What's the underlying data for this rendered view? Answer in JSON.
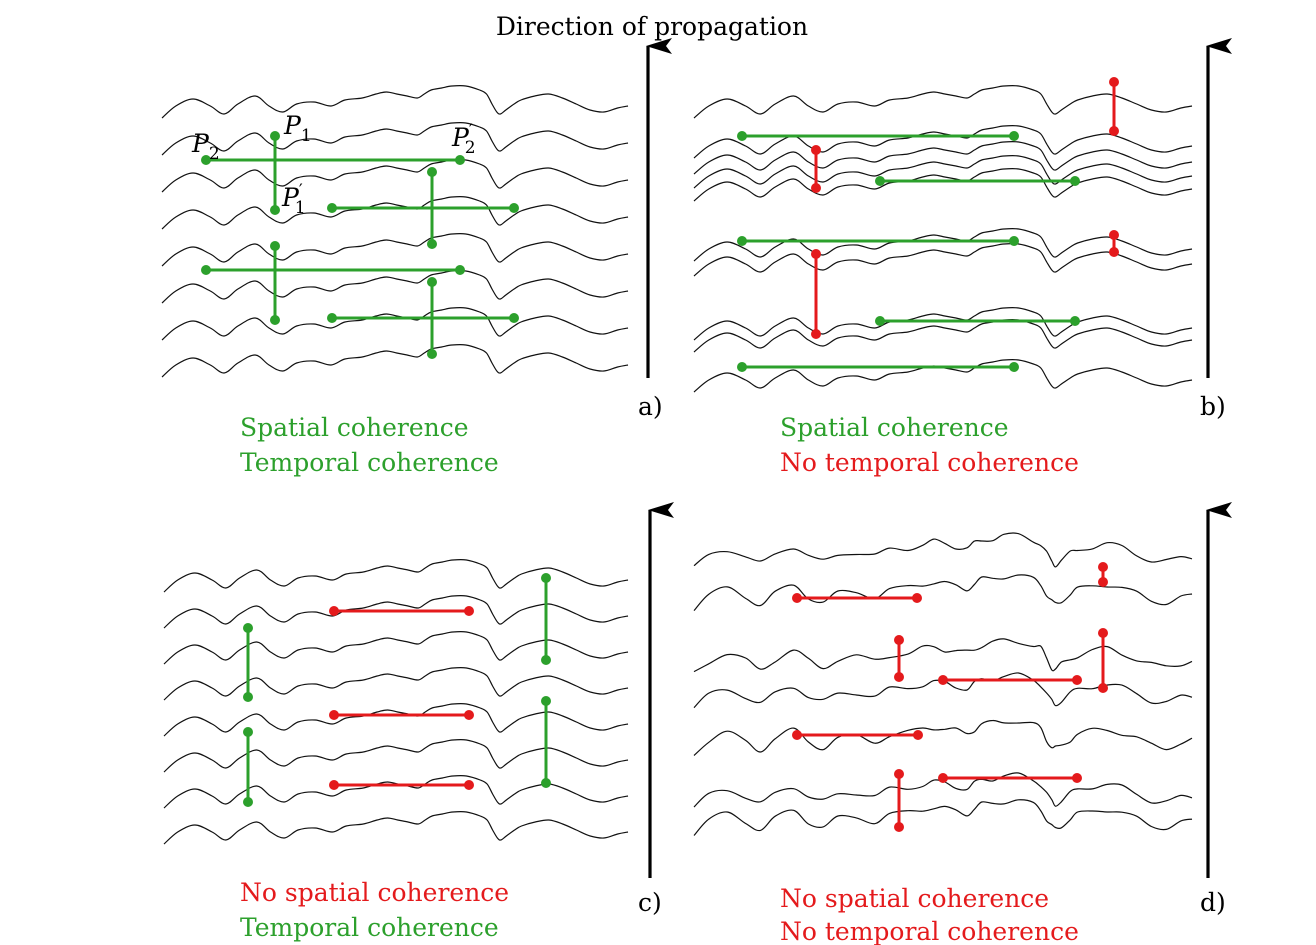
{
  "title": "Direction of propagation",
  "colors": {
    "coherent": "#2ca02c",
    "incoherent": "#e41a1c",
    "wave": "#111111",
    "axis": "#000000"
  },
  "point_labels": {
    "p1": "P",
    "p1_sub": "1",
    "p1p": "P",
    "p1p_sub": "1",
    "p2": "P",
    "p2_sub": "2",
    "p2p": "P",
    "p2p_sub": "2",
    "prime": "′"
  },
  "panels": [
    {
      "id": "a",
      "panel_label": "a)",
      "spatial": "Spatial coherence",
      "temporal": "Temporal coherence",
      "spatial_ok": true,
      "temporal_ok": true
    },
    {
      "id": "b",
      "panel_label": "b)",
      "spatial": "Spatial coherence",
      "temporal": "No temporal coherence",
      "spatial_ok": true,
      "temporal_ok": false
    },
    {
      "id": "c",
      "panel_label": "c)",
      "spatial": "No spatial coherence",
      "temporal": "Temporal coherence",
      "spatial_ok": false,
      "temporal_ok": true
    },
    {
      "id": "d",
      "panel_label": "d)",
      "spatial": "No spatial coherence",
      "temporal": "No temporal coherence",
      "spatial_ok": false,
      "temporal_ok": false
    }
  ]
}
